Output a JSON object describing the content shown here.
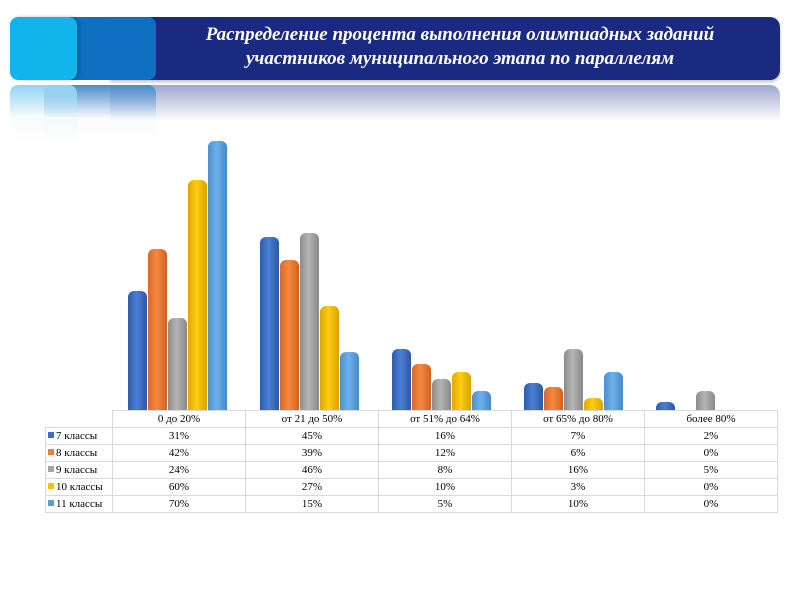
{
  "header": {
    "title_line1": "Распределение процента выполнения олимпиадных заданий",
    "title_line2": "участников муниципального этапа по параллелям"
  },
  "colors": {
    "banner_navy": "#1a2a80",
    "banner_light_blue": "#12b4ec",
    "banner_dark_blue": "#0f6fc0"
  },
  "chart_data": {
    "type": "bar",
    "title": "Распределение процента выполнения олимпиадных заданий участников муниципального этапа по параллелям",
    "xlabel": "",
    "ylabel": "",
    "ylim": [
      0,
      75
    ],
    "grid": false,
    "legend_position": "table-left",
    "categories": [
      "0 до 20%",
      "от 21 до 50%",
      "от 51% до 64%",
      "от 65% до 80%",
      "более 80%"
    ],
    "series": [
      {
        "name": "7 классы",
        "color": "#3f6fc4",
        "values": [
          31,
          45,
          16,
          7,
          2
        ],
        "labels": [
          "31%",
          "45%",
          "16%",
          "7%",
          "2%"
        ]
      },
      {
        "name": "8 классы",
        "color": "#ed7d31",
        "values": [
          42,
          39,
          12,
          6,
          0
        ],
        "labels": [
          "42%",
          "39%",
          "12%",
          "6%",
          "0%"
        ]
      },
      {
        "name": "9 классы",
        "color": "#a5a5a5",
        "values": [
          24,
          46,
          8,
          16,
          5
        ],
        "labels": [
          "24%",
          "46%",
          "8%",
          "16%",
          "5%"
        ]
      },
      {
        "name": "10 классы",
        "color": "#ffc000",
        "values": [
          60,
          27,
          10,
          3,
          0
        ],
        "labels": [
          "60%",
          "27%",
          "10%",
          "3%",
          "0%"
        ]
      },
      {
        "name": "11 классы",
        "color": "#5b9bd5",
        "values": [
          70,
          15,
          5,
          10,
          0
        ],
        "labels": [
          "70%",
          "15%",
          "5%",
          "10%",
          "0%"
        ]
      }
    ]
  }
}
